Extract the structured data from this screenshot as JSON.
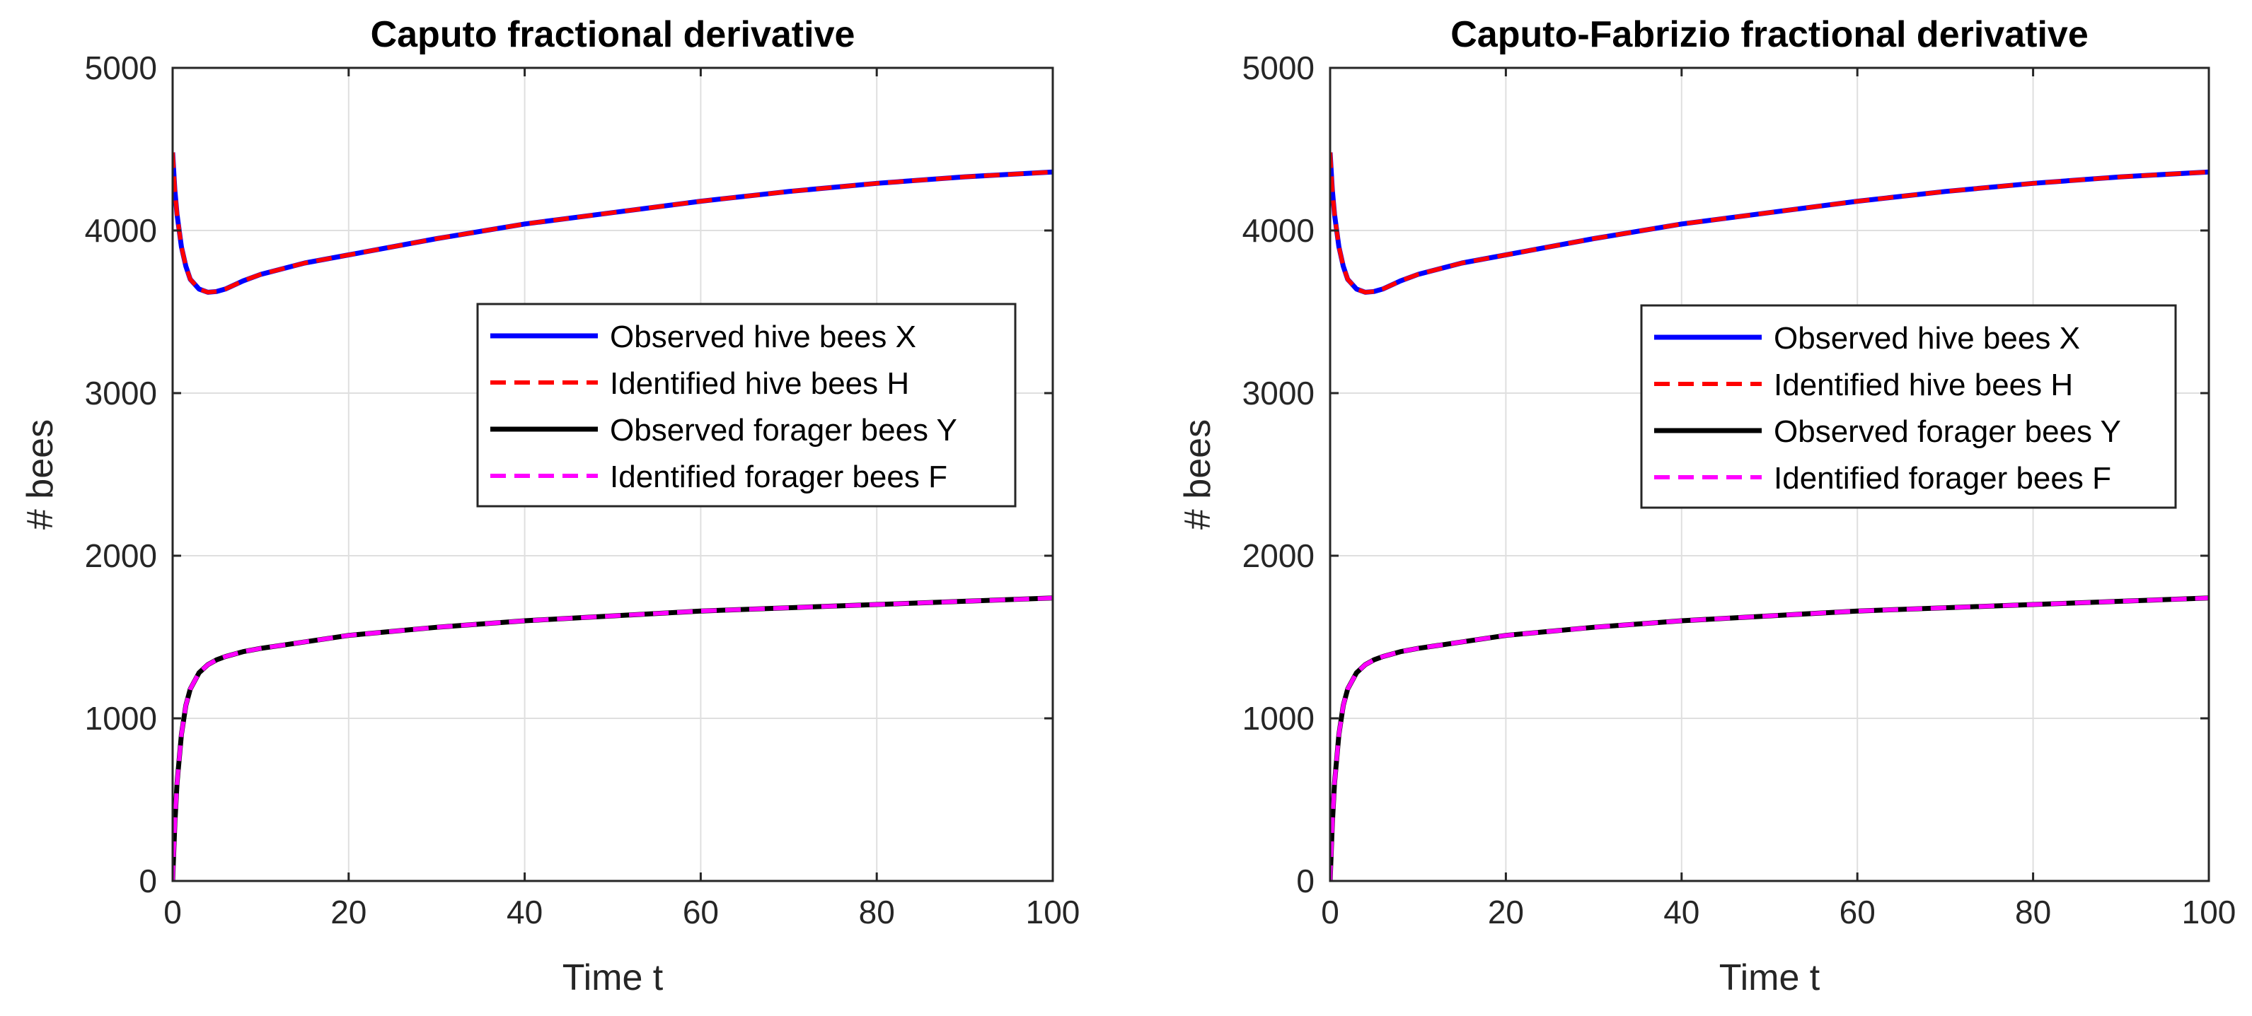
{
  "chart_data": [
    {
      "type": "line",
      "title": "Caputo fractional derivative",
      "xlabel": "Time t",
      "ylabel": "# bees",
      "xlim": [
        0,
        100
      ],
      "ylim": [
        0,
        5000
      ],
      "xticks": [
        0,
        20,
        40,
        60,
        80,
        100
      ],
      "yticks": [
        0,
        1000,
        2000,
        3000,
        4000,
        5000
      ],
      "grid": true,
      "legend_position": "inside, center-right",
      "x": [
        0,
        0.25,
        0.5,
        1,
        1.5,
        2,
        3,
        4,
        5,
        6,
        8,
        10,
        15,
        20,
        30,
        40,
        50,
        60,
        70,
        80,
        90,
        100
      ],
      "series": [
        {
          "name": "Observed hive bees X",
          "color": "#0000ff",
          "style": "solid",
          "values": [
            4480,
            4250,
            4100,
            3900,
            3780,
            3700,
            3640,
            3620,
            3625,
            3640,
            3690,
            3730,
            3800,
            3850,
            3950,
            4040,
            4110,
            4180,
            4240,
            4290,
            4330,
            4360
          ]
        },
        {
          "name": "Identified hive bees H",
          "color": "#ff0000",
          "style": "dashed",
          "values": [
            4480,
            4250,
            4100,
            3900,
            3780,
            3700,
            3640,
            3620,
            3625,
            3640,
            3690,
            3730,
            3800,
            3850,
            3950,
            4040,
            4110,
            4180,
            4240,
            4290,
            4330,
            4360
          ]
        },
        {
          "name": "Observed forager bees Y",
          "color": "#000000",
          "style": "solid",
          "values": [
            0,
            350,
            600,
            900,
            1080,
            1180,
            1280,
            1330,
            1360,
            1380,
            1410,
            1430,
            1470,
            1510,
            1560,
            1600,
            1630,
            1660,
            1680,
            1700,
            1720,
            1740
          ]
        },
        {
          "name": "Identified forager bees F",
          "color": "#ff00ff",
          "style": "dashed",
          "values": [
            0,
            350,
            600,
            900,
            1080,
            1180,
            1280,
            1330,
            1360,
            1380,
            1410,
            1430,
            1470,
            1510,
            1560,
            1600,
            1630,
            1660,
            1680,
            1700,
            1720,
            1740
          ]
        }
      ]
    },
    {
      "type": "line",
      "title": "Caputo-Fabrizio fractional derivative",
      "xlabel": "Time t",
      "ylabel": "# bees",
      "xlim": [
        0,
        100
      ],
      "ylim": [
        0,
        5000
      ],
      "xticks": [
        0,
        20,
        40,
        60,
        80,
        100
      ],
      "yticks": [
        0,
        1000,
        2000,
        3000,
        4000,
        5000
      ],
      "grid": true,
      "legend_position": "inside, center-right",
      "x": [
        0,
        0.25,
        0.5,
        1,
        1.5,
        2,
        3,
        4,
        5,
        6,
        8,
        10,
        15,
        20,
        30,
        40,
        50,
        60,
        70,
        80,
        90,
        100
      ],
      "series": [
        {
          "name": "Observed hive bees X",
          "color": "#0000ff",
          "style": "solid",
          "values": [
            4480,
            4250,
            4100,
            3900,
            3780,
            3700,
            3640,
            3620,
            3625,
            3640,
            3690,
            3730,
            3800,
            3850,
            3950,
            4040,
            4110,
            4180,
            4240,
            4290,
            4330,
            4360
          ]
        },
        {
          "name": "Identified hive bees H",
          "color": "#ff0000",
          "style": "dashed",
          "values": [
            4480,
            4250,
            4100,
            3900,
            3780,
            3700,
            3640,
            3620,
            3625,
            3640,
            3690,
            3730,
            3800,
            3850,
            3950,
            4040,
            4110,
            4180,
            4240,
            4290,
            4330,
            4360
          ]
        },
        {
          "name": "Observed forager bees Y",
          "color": "#000000",
          "style": "solid",
          "values": [
            0,
            350,
            600,
            900,
            1080,
            1180,
            1280,
            1330,
            1360,
            1380,
            1410,
            1430,
            1470,
            1510,
            1560,
            1600,
            1630,
            1660,
            1680,
            1700,
            1720,
            1740
          ]
        },
        {
          "name": "Identified forager bees F",
          "color": "#ff00ff",
          "style": "dashed",
          "values": [
            0,
            350,
            600,
            900,
            1080,
            1180,
            1280,
            1330,
            1360,
            1380,
            1410,
            1430,
            1470,
            1510,
            1560,
            1600,
            1630,
            1660,
            1680,
            1700,
            1720,
            1740
          ]
        }
      ]
    }
  ]
}
